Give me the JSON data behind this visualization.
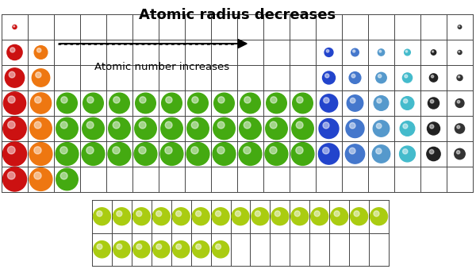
{
  "title": "Atomic radius decreases",
  "subtitle": "Atomic number increases",
  "bg_color": "#ffffff",
  "grid_color": "#444444",
  "colors": {
    "red": "#cc1111",
    "orange": "#ee7711",
    "green": "#44aa11",
    "blue": "#2244cc",
    "medium_blue": "#4477cc",
    "light_blue": "#5599cc",
    "cyan": "#44bbcc",
    "dark": "#222222",
    "yellow_green": "#aacc11",
    "tiny_red": "#cc1111",
    "tiny_dark": "#333333"
  },
  "main_ncols": 18,
  "main_nrows": 7,
  "ln_ncols": 15,
  "ln_nrows": 2,
  "figw": 6.0,
  "figh": 3.39
}
